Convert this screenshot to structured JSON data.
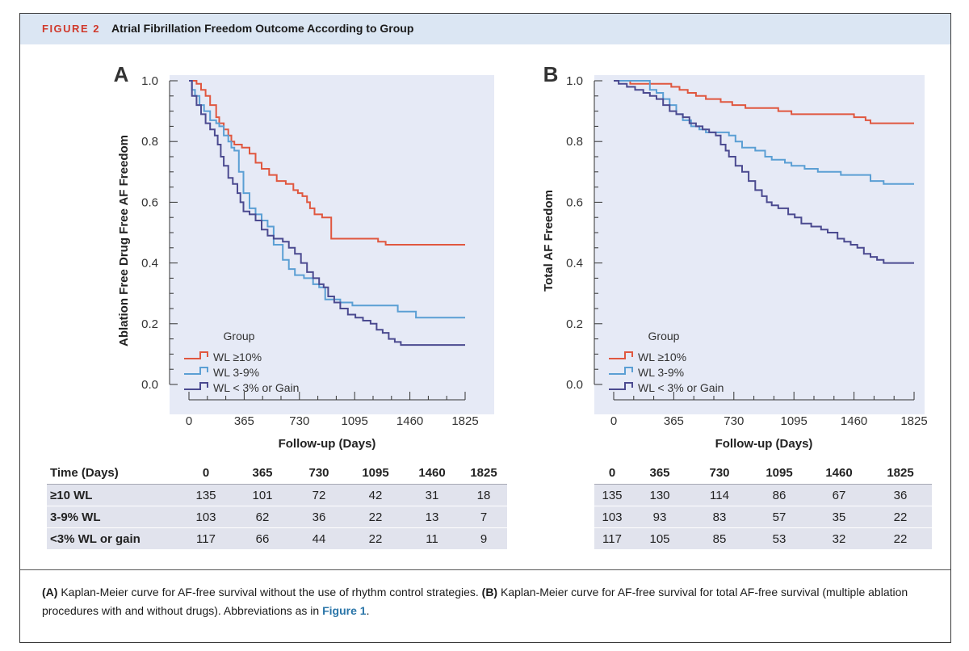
{
  "figure": {
    "number": "FIGURE 2",
    "title": "Atrial Fibrillation Freedom Outcome According to Group"
  },
  "chart_data": [
    {
      "type": "line",
      "panel": "A",
      "xlabel": "Follow-up (Days)",
      "ylabel": "Ablation Free Drug Free AF Freedom",
      "xticks": [
        0,
        365,
        730,
        1095,
        1460,
        1825
      ],
      "xlim": [
        0,
        1825
      ],
      "yticks": [
        "0.0",
        "0.2",
        "0.4",
        "0.6",
        "0.8",
        "1.0"
      ],
      "ylim": [
        0,
        1.0
      ],
      "legend_title": "Group",
      "series": [
        {
          "name": "WL ≥10%",
          "color": "#e0573f",
          "points": [
            [
              0,
              1
            ],
            [
              30,
              1
            ],
            [
              50,
              0.99
            ],
            [
              80,
              0.97
            ],
            [
              110,
              0.95
            ],
            [
              140,
              0.92
            ],
            [
              180,
              0.88
            ],
            [
              200,
              0.86
            ],
            [
              230,
              0.84
            ],
            [
              260,
              0.82
            ],
            [
              280,
              0.8
            ],
            [
              300,
              0.79
            ],
            [
              350,
              0.78
            ],
            [
              400,
              0.76
            ],
            [
              440,
              0.73
            ],
            [
              480,
              0.71
            ],
            [
              530,
              0.69
            ],
            [
              580,
              0.67
            ],
            [
              640,
              0.66
            ],
            [
              690,
              0.64
            ],
            [
              720,
              0.63
            ],
            [
              750,
              0.62
            ],
            [
              780,
              0.6
            ],
            [
              800,
              0.58
            ],
            [
              830,
              0.56
            ],
            [
              860,
              0.56
            ],
            [
              880,
              0.55
            ],
            [
              900,
              0.55
            ],
            [
              940,
              0.48
            ],
            [
              1200,
              0.48
            ],
            [
              1250,
              0.47
            ],
            [
              1300,
              0.46
            ],
            [
              1825,
              0.46
            ]
          ]
        },
        {
          "name": "WL 3-9%",
          "color": "#5b9fd4",
          "points": [
            [
              0,
              1
            ],
            [
              20,
              0.97
            ],
            [
              40,
              0.95
            ],
            [
              70,
              0.92
            ],
            [
              100,
              0.9
            ],
            [
              140,
              0.87
            ],
            [
              180,
              0.86
            ],
            [
              200,
              0.85
            ],
            [
              230,
              0.82
            ],
            [
              260,
              0.8
            ],
            [
              280,
              0.78
            ],
            [
              300,
              0.77
            ],
            [
              330,
              0.7
            ],
            [
              360,
              0.63
            ],
            [
              400,
              0.58
            ],
            [
              440,
              0.56
            ],
            [
              480,
              0.54
            ],
            [
              520,
              0.52
            ],
            [
              560,
              0.46
            ],
            [
              620,
              0.41
            ],
            [
              660,
              0.38
            ],
            [
              700,
              0.36
            ],
            [
              760,
              0.35
            ],
            [
              820,
              0.33
            ],
            [
              860,
              0.32
            ],
            [
              900,
              0.28
            ],
            [
              1000,
              0.27
            ],
            [
              1080,
              0.26
            ],
            [
              1360,
              0.26
            ],
            [
              1380,
              0.24
            ],
            [
              1460,
              0.24
            ],
            [
              1500,
              0.22
            ],
            [
              1825,
              0.22
            ]
          ]
        },
        {
          "name": "WL < 3% or Gain",
          "color": "#4b4a90",
          "points": [
            [
              0,
              1
            ],
            [
              20,
              0.95
            ],
            [
              50,
              0.92
            ],
            [
              80,
              0.89
            ],
            [
              110,
              0.86
            ],
            [
              140,
              0.84
            ],
            [
              170,
              0.82
            ],
            [
              190,
              0.79
            ],
            [
              210,
              0.75
            ],
            [
              230,
              0.72
            ],
            [
              260,
              0.68
            ],
            [
              290,
              0.66
            ],
            [
              320,
              0.63
            ],
            [
              340,
              0.6
            ],
            [
              360,
              0.57
            ],
            [
              400,
              0.56
            ],
            [
              440,
              0.54
            ],
            [
              480,
              0.51
            ],
            [
              520,
              0.49
            ],
            [
              560,
              0.48
            ],
            [
              620,
              0.47
            ],
            [
              660,
              0.45
            ],
            [
              700,
              0.43
            ],
            [
              740,
              0.4
            ],
            [
              780,
              0.37
            ],
            [
              820,
              0.35
            ],
            [
              860,
              0.33
            ],
            [
              890,
              0.32
            ],
            [
              920,
              0.29
            ],
            [
              960,
              0.27
            ],
            [
              1000,
              0.25
            ],
            [
              1050,
              0.23
            ],
            [
              1100,
              0.22
            ],
            [
              1150,
              0.21
            ],
            [
              1200,
              0.2
            ],
            [
              1240,
              0.18
            ],
            [
              1280,
              0.17
            ],
            [
              1320,
              0.15
            ],
            [
              1360,
              0.14
            ],
            [
              1400,
              0.13
            ],
            [
              1825,
              0.13
            ]
          ]
        }
      ]
    },
    {
      "type": "line",
      "panel": "B",
      "xlabel": "Follow-up (Days)",
      "ylabel": "Total AF Freedom",
      "xticks": [
        0,
        365,
        730,
        1095,
        1460,
        1825
      ],
      "xlim": [
        0,
        1825
      ],
      "yticks": [
        "0.0",
        "0.2",
        "0.4",
        "0.6",
        "0.8",
        "1.0"
      ],
      "ylim": [
        0,
        1.0
      ],
      "legend_title": "Group",
      "series": [
        {
          "name": "WL ≥10%",
          "color": "#e0573f",
          "points": [
            [
              0,
              1
            ],
            [
              80,
              1
            ],
            [
              100,
              0.99
            ],
            [
              320,
              0.99
            ],
            [
              350,
              0.98
            ],
            [
              400,
              0.97
            ],
            [
              450,
              0.96
            ],
            [
              500,
              0.95
            ],
            [
              560,
              0.94
            ],
            [
              650,
              0.93
            ],
            [
              720,
              0.92
            ],
            [
              800,
              0.91
            ],
            [
              1000,
              0.9
            ],
            [
              1080,
              0.89
            ],
            [
              1400,
              0.89
            ],
            [
              1460,
              0.88
            ],
            [
              1530,
              0.87
            ],
            [
              1560,
              0.86
            ],
            [
              1825,
              0.86
            ]
          ]
        },
        {
          "name": "WL 3-9%",
          "color": "#5b9fd4",
          "points": [
            [
              0,
              1
            ],
            [
              200,
              1
            ],
            [
              220,
              0.97
            ],
            [
              260,
              0.96
            ],
            [
              300,
              0.94
            ],
            [
              340,
              0.92
            ],
            [
              380,
              0.89
            ],
            [
              420,
              0.87
            ],
            [
              470,
              0.85
            ],
            [
              520,
              0.84
            ],
            [
              560,
              0.83
            ],
            [
              660,
              0.83
            ],
            [
              700,
              0.82
            ],
            [
              740,
              0.8
            ],
            [
              780,
              0.78
            ],
            [
              860,
              0.77
            ],
            [
              920,
              0.75
            ],
            [
              960,
              0.74
            ],
            [
              1040,
              0.73
            ],
            [
              1080,
              0.72
            ],
            [
              1160,
              0.71
            ],
            [
              1240,
              0.7
            ],
            [
              1380,
              0.69
            ],
            [
              1560,
              0.67
            ],
            [
              1640,
              0.66
            ],
            [
              1825,
              0.66
            ]
          ]
        },
        {
          "name": "WL < 3% or Gain",
          "color": "#4b4a90",
          "points": [
            [
              0,
              1
            ],
            [
              30,
              0.99
            ],
            [
              80,
              0.98
            ],
            [
              130,
              0.97
            ],
            [
              180,
              0.96
            ],
            [
              220,
              0.95
            ],
            [
              260,
              0.94
            ],
            [
              300,
              0.92
            ],
            [
              340,
              0.9
            ],
            [
              380,
              0.89
            ],
            [
              420,
              0.88
            ],
            [
              460,
              0.86
            ],
            [
              500,
              0.85
            ],
            [
              540,
              0.84
            ],
            [
              580,
              0.83
            ],
            [
              620,
              0.82
            ],
            [
              650,
              0.79
            ],
            [
              680,
              0.77
            ],
            [
              700,
              0.75
            ],
            [
              740,
              0.72
            ],
            [
              780,
              0.7
            ],
            [
              820,
              0.67
            ],
            [
              860,
              0.64
            ],
            [
              900,
              0.62
            ],
            [
              930,
              0.6
            ],
            [
              960,
              0.59
            ],
            [
              1000,
              0.58
            ],
            [
              1060,
              0.56
            ],
            [
              1100,
              0.55
            ],
            [
              1140,
              0.53
            ],
            [
              1200,
              0.52
            ],
            [
              1260,
              0.51
            ],
            [
              1300,
              0.5
            ],
            [
              1360,
              0.48
            ],
            [
              1400,
              0.47
            ],
            [
              1440,
              0.46
            ],
            [
              1480,
              0.45
            ],
            [
              1520,
              0.43
            ],
            [
              1560,
              0.42
            ],
            [
              1600,
              0.41
            ],
            [
              1640,
              0.4
            ],
            [
              1825,
              0.4
            ]
          ]
        }
      ]
    }
  ],
  "risk_tables": {
    "a": {
      "header": [
        "Time (Days)",
        "0",
        "365",
        "730",
        "1095",
        "1460",
        "1825"
      ],
      "rows": [
        [
          "≥10 WL",
          "135",
          "101",
          "72",
          "42",
          "31",
          "18"
        ],
        [
          "3-9% WL",
          "103",
          "62",
          "36",
          "22",
          "13",
          "7"
        ],
        [
          "<3% WL or gain",
          "117",
          "66",
          "44",
          "22",
          "11",
          "9"
        ]
      ]
    },
    "b": {
      "header": [
        "0",
        "365",
        "730",
        "1095",
        "1460",
        "1825"
      ],
      "rows": [
        [
          "135",
          "130",
          "114",
          "86",
          "67",
          "36"
        ],
        [
          "103",
          "93",
          "83",
          "57",
          "35",
          "22"
        ],
        [
          "117",
          "105",
          "85",
          "53",
          "32",
          "22"
        ]
      ]
    }
  },
  "caption": {
    "a_label": "(A)",
    "a_text": " Kaplan-Meier curve for AF-free survival without the use of rhythm control strategies. ",
    "b_label": "(B)",
    "b_text": " Kaplan-Meier curve for AF-free survival for total AF-free survival (multiple ablation procedures with and without drugs). Abbreviations as in ",
    "link": "Figure 1",
    "end": "."
  }
}
